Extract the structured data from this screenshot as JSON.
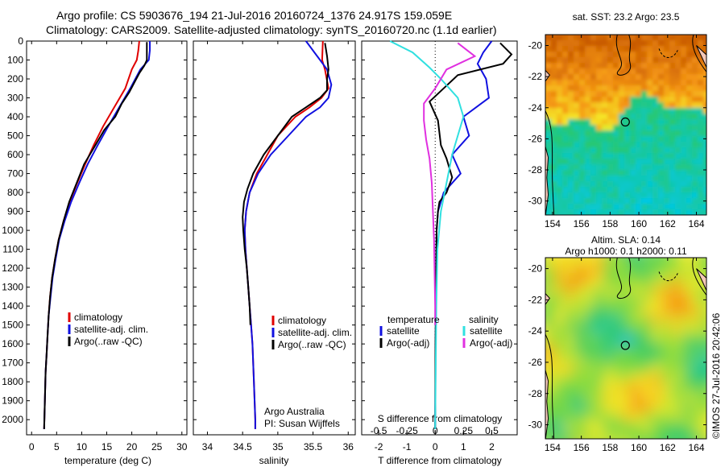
{
  "header": {
    "line1": "Argo profile: CS 5903676_194 21-Jul-2016 20160724_1376 24.917S 159.059E",
    "line2": "Climatology: CARS2009. Satellite-adjusted climatology: synTS_20160720.nc (1.1d earlier)"
  },
  "credits": {
    "org": "Argo Australia",
    "pi": "PI: Susan Wijffels",
    "stamp": "©IMOS 27-Jul-2016 20:42:06"
  },
  "colors": {
    "climatology": "#e00000",
    "satellite": "#1010e0",
    "argo": "#000000",
    "sal_satellite": "#30e0e0",
    "sal_argo": "#e030e0"
  },
  "chart_data": [
    {
      "type": "line",
      "id": "temperature",
      "xlabel": "temperature (deg C)",
      "xlim": [
        -1,
        31
      ],
      "xticks": [
        0,
        5,
        10,
        15,
        20,
        25,
        30
      ],
      "ylim": [
        2080,
        0
      ],
      "yticks": [
        0,
        100,
        200,
        300,
        400,
        500,
        600,
        700,
        800,
        900,
        1000,
        1100,
        1200,
        1300,
        1400,
        1500,
        1600,
        1700,
        1800,
        1900,
        2000
      ],
      "legend": [
        "climatology",
        "satellite-adj. clim.",
        "Argo(..raw -QC)"
      ],
      "series": [
        {
          "name": "climatology",
          "color": "#e00000",
          "points": [
            [
              21.5,
              0
            ],
            [
              21.3,
              50
            ],
            [
              21.0,
              100
            ],
            [
              20.0,
              150
            ],
            [
              18.7,
              250
            ],
            [
              16.5,
              350
            ],
            [
              14.3,
              450
            ],
            [
              12.4,
              550
            ],
            [
              10.7,
              650
            ],
            [
              9.1,
              750
            ],
            [
              7.6,
              850
            ],
            [
              6.4,
              950
            ],
            [
              5.4,
              1050
            ],
            [
              4.7,
              1150
            ],
            [
              4.1,
              1250
            ],
            [
              3.7,
              1350
            ],
            [
              3.4,
              1450
            ],
            [
              3.2,
              1550
            ],
            [
              3.0,
              1650
            ],
            [
              2.8,
              1750
            ],
            [
              2.7,
              1850
            ],
            [
              2.6,
              1950
            ],
            [
              2.5,
              2050
            ]
          ]
        },
        {
          "name": "satellite-adj. clim.",
          "color": "#1010e0",
          "points": [
            [
              23.6,
              0
            ],
            [
              23.6,
              50
            ],
            [
              23.4,
              100
            ],
            [
              21.7,
              150
            ],
            [
              19.7,
              250
            ],
            [
              17.5,
              350
            ],
            [
              15.3,
              450
            ],
            [
              13.2,
              550
            ],
            [
              11.2,
              650
            ],
            [
              9.5,
              750
            ],
            [
              7.9,
              850
            ],
            [
              6.6,
              950
            ],
            [
              5.5,
              1050
            ],
            [
              4.8,
              1150
            ],
            [
              4.2,
              1250
            ],
            [
              3.8,
              1350
            ],
            [
              3.4,
              1450
            ],
            [
              3.2,
              1550
            ],
            [
              3.0,
              1650
            ],
            [
              2.8,
              1750
            ],
            [
              2.7,
              1850
            ],
            [
              2.6,
              1950
            ],
            [
              2.5,
              2050
            ]
          ]
        },
        {
          "name": "Argo(..raw -QC)",
          "color": "#000000",
          "points": [
            [
              23.0,
              5
            ],
            [
              23.0,
              50
            ],
            [
              23.0,
              100
            ],
            [
              22.5,
              130
            ],
            [
              21.5,
              170
            ],
            [
              20.5,
              220
            ],
            [
              19.5,
              270
            ],
            [
              18.0,
              330
            ],
            [
              16.7,
              400
            ],
            [
              14.5,
              470
            ],
            [
              12.5,
              560
            ],
            [
              10.5,
              650
            ],
            [
              9.0,
              750
            ],
            [
              7.5,
              850
            ],
            [
              6.4,
              950
            ],
            [
              5.4,
              1050
            ],
            [
              4.7,
              1150
            ],
            [
              4.1,
              1250
            ],
            [
              3.7,
              1350
            ],
            [
              3.4,
              1450
            ],
            [
              3.2,
              1550
            ],
            [
              3.0,
              1650
            ],
            [
              2.8,
              1750
            ],
            [
              2.7,
              1850
            ],
            [
              2.6,
              1950
            ],
            [
              2.5,
              2050
            ]
          ]
        }
      ]
    },
    {
      "type": "line",
      "id": "salinity",
      "xlabel": "salinity",
      "xlim": [
        33.8,
        36.1
      ],
      "xticks": [
        34,
        34.5,
        35,
        35.5,
        36
      ],
      "ylim": [
        2080,
        0
      ],
      "legend": [
        "climatology",
        "satellite-adj. clim.",
        "Argo(..raw -QC)"
      ],
      "series": [
        {
          "name": "climatology",
          "color": "#e00000",
          "points": [
            [
              35.64,
              0
            ],
            [
              35.63,
              100
            ],
            [
              35.67,
              150
            ],
            [
              35.72,
              250
            ],
            [
              35.62,
              300
            ],
            [
              35.45,
              350
            ],
            [
              35.25,
              400
            ],
            [
              35.0,
              500
            ],
            [
              34.85,
              600
            ],
            [
              34.7,
              700
            ],
            [
              34.6,
              800
            ],
            [
              34.55,
              900
            ],
            [
              34.53,
              1000
            ],
            [
              34.54,
              1100
            ],
            [
              34.56,
              1200
            ],
            [
              34.58,
              1300
            ],
            [
              34.6,
              1400
            ],
            [
              34.62,
              1500
            ],
            [
              34.64,
              1600
            ],
            [
              34.66,
              1800
            ],
            [
              34.68,
              2000
            ],
            [
              34.68,
              2050
            ]
          ]
        },
        {
          "name": "satellite-adj. clim.",
          "color": "#1010e0",
          "points": [
            [
              35.4,
              0
            ],
            [
              35.52,
              60
            ],
            [
              35.6,
              100
            ],
            [
              35.7,
              150
            ],
            [
              35.76,
              230
            ],
            [
              35.72,
              300
            ],
            [
              35.6,
              350
            ],
            [
              35.4,
              400
            ],
            [
              35.15,
              500
            ],
            [
              34.9,
              600
            ],
            [
              34.72,
              700
            ],
            [
              34.6,
              800
            ],
            [
              34.55,
              900
            ],
            [
              34.53,
              1000
            ],
            [
              34.54,
              1100
            ],
            [
              34.56,
              1200
            ],
            [
              34.58,
              1300
            ],
            [
              34.6,
              1400
            ],
            [
              34.62,
              1500
            ],
            [
              34.64,
              1600
            ],
            [
              34.66,
              1800
            ],
            [
              34.68,
              2000
            ],
            [
              34.68,
              2050
            ]
          ]
        },
        {
          "name": "Argo(..raw -QC)",
          "color": "#000000",
          "points": [
            [
              35.67,
              10
            ],
            [
              35.7,
              80
            ],
            [
              35.72,
              150
            ],
            [
              35.7,
              200
            ],
            [
              35.7,
              260
            ],
            [
              35.6,
              300
            ],
            [
              35.4,
              350
            ],
            [
              35.2,
              400
            ],
            [
              35.0,
              500
            ],
            [
              34.8,
              600
            ],
            [
              34.65,
              700
            ],
            [
              34.57,
              780
            ],
            [
              34.52,
              850
            ],
            [
              34.5,
              930
            ],
            [
              34.51,
              1000
            ],
            [
              34.53,
              1100
            ],
            [
              34.56,
              1200
            ],
            [
              34.58,
              1300
            ],
            [
              34.6,
              1400
            ],
            [
              34.61,
              1500
            ]
          ]
        }
      ]
    },
    {
      "type": "line",
      "id": "difference",
      "xlabel": "T difference from climatology",
      "xlabel2": "S difference from climatology",
      "xlim": [
        -2.6,
        2.9
      ],
      "xticks": [
        -2,
        -1,
        0,
        1,
        2
      ],
      "xticks2": [
        -0.5,
        -0.25,
        0,
        0.25,
        0.5
      ],
      "ylim": [
        2080,
        0
      ],
      "legend_headers": [
        "temperature",
        "salinity"
      ],
      "legend": [
        "satellite",
        "Argo(-adj)",
        "satellite",
        "Argo(-adj)"
      ],
      "series": [
        {
          "name": "temperature satellite",
          "color": "#1010e0",
          "points": [
            [
              2.0,
              0
            ],
            [
              1.7,
              60
            ],
            [
              1.5,
              120
            ],
            [
              1.8,
              200
            ],
            [
              1.9,
              300
            ],
            [
              1.0,
              400
            ],
            [
              1.2,
              500
            ],
            [
              0.6,
              600
            ],
            [
              0.9,
              700
            ],
            [
              0.3,
              800
            ],
            [
              0.1,
              900
            ],
            [
              0.05,
              1000
            ],
            [
              0.03,
              1200
            ],
            [
              0.02,
              1500
            ],
            [
              0.0,
              2050
            ]
          ]
        },
        {
          "name": "temperature Argo(-adj)",
          "color": "#000000",
          "points": [
            [
              2.3,
              10
            ],
            [
              2.7,
              70
            ],
            [
              2.4,
              120
            ],
            [
              0.8,
              180
            ],
            [
              -0.2,
              320
            ],
            [
              0.1,
              420
            ],
            [
              0.2,
              550
            ],
            [
              0.4,
              620
            ],
            [
              0.6,
              720
            ],
            [
              0.4,
              800
            ],
            [
              0.15,
              850
            ],
            [
              0.1,
              900
            ],
            [
              0.05,
              1000
            ],
            [
              0.03,
              1300
            ],
            [
              0.01,
              1600
            ],
            [
              0.0,
              2050
            ]
          ]
        },
        {
          "name": "salinity satellite",
          "color": "#30e0e0",
          "points": [
            [
              -0.4,
              0
            ],
            [
              -0.2,
              60
            ],
            [
              -0.05,
              140
            ],
            [
              0.05,
              200
            ],
            [
              0.2,
              300
            ],
            [
              0.25,
              400
            ],
            [
              0.2,
              500
            ],
            [
              0.15,
              600
            ],
            [
              0.1,
              750
            ],
            [
              0.05,
              900
            ],
            [
              0.02,
              1100
            ],
            [
              0.01,
              1400
            ],
            [
              0.0,
              2050
            ]
          ]
        },
        {
          "name": "salinity Argo(-adj)",
          "color": "#e030e0",
          "points": [
            [
              0.2,
              10
            ],
            [
              0.35,
              80
            ],
            [
              0.1,
              150
            ],
            [
              0.0,
              250
            ],
            [
              -0.1,
              330
            ],
            [
              -0.1,
              420
            ],
            [
              -0.08,
              520
            ],
            [
              -0.05,
              620
            ],
            [
              -0.03,
              750
            ],
            [
              -0.02,
              900
            ],
            [
              -0.01,
              1050
            ],
            [
              0.0,
              1400
            ],
            [
              0.0,
              1500
            ]
          ]
        }
      ]
    },
    {
      "type": "heatmap",
      "id": "sst_map",
      "title": "sat. SST: 23.2  Argo: 23.5",
      "xlim": [
        153.5,
        164.7
      ],
      "xticks": [
        154,
        156,
        158,
        160,
        162,
        164
      ],
      "ylim": [
        -30.9,
        -19.3
      ],
      "yticks": [
        -20,
        -22,
        -24,
        -26,
        -28,
        -30
      ],
      "profile_location": [
        159.06,
        -24.92
      ]
    },
    {
      "type": "heatmap",
      "id": "sla_map",
      "title": "Altim. SLA: 0.14",
      "subtitle": "Argo h1000: 0.1  h2000: 0.11",
      "xlim": [
        153.5,
        164.7
      ],
      "xticks": [
        154,
        156,
        158,
        160,
        162,
        164
      ],
      "ylim": [
        -30.9,
        -19.3
      ],
      "yticks": [
        -20,
        -22,
        -24,
        -26,
        -28,
        -30
      ],
      "profile_location": [
        159.06,
        -24.92
      ]
    }
  ]
}
